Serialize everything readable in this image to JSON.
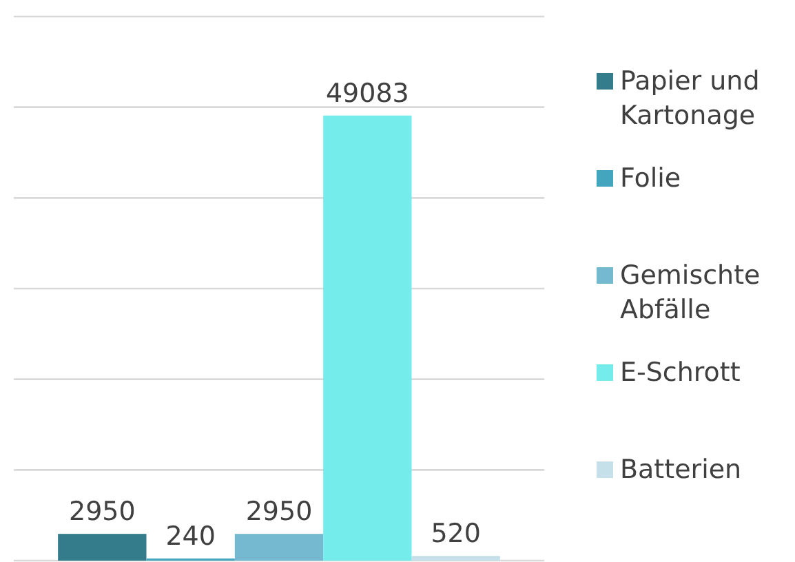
{
  "chart_data": {
    "type": "bar",
    "categories": [
      null
    ],
    "series": [
      {
        "name": "Papier und Kartonage",
        "color": "#347c8c",
        "values": [
          2950
        ]
      },
      {
        "name": "Folie",
        "color": "#44a6be",
        "values": [
          240
        ]
      },
      {
        "name": "Gemischte Abfälle",
        "color": "#74b9d0",
        "values": [
          2950
        ]
      },
      {
        "name": "E-Schrott",
        "color": "#74ecec",
        "values": [
          49083
        ]
      },
      {
        "name": "Batterien",
        "color": "#c5e0e8",
        "values": [
          520
        ]
      }
    ],
    "ylim": [
      0,
      60000
    ],
    "yticks": [
      {
        "value": 0,
        "label": null
      },
      {
        "value": 10000,
        "label": null
      },
      {
        "value": 20000,
        "label": null
      },
      {
        "value": 30000,
        "label": null
      },
      {
        "value": 40000,
        "label": null
      },
      {
        "value": 50000,
        "label": null
      },
      {
        "value": 60000,
        "label": null
      }
    ],
    "tick_labels": false,
    "grid": "y",
    "legend": "right",
    "data_labels": true
  }
}
